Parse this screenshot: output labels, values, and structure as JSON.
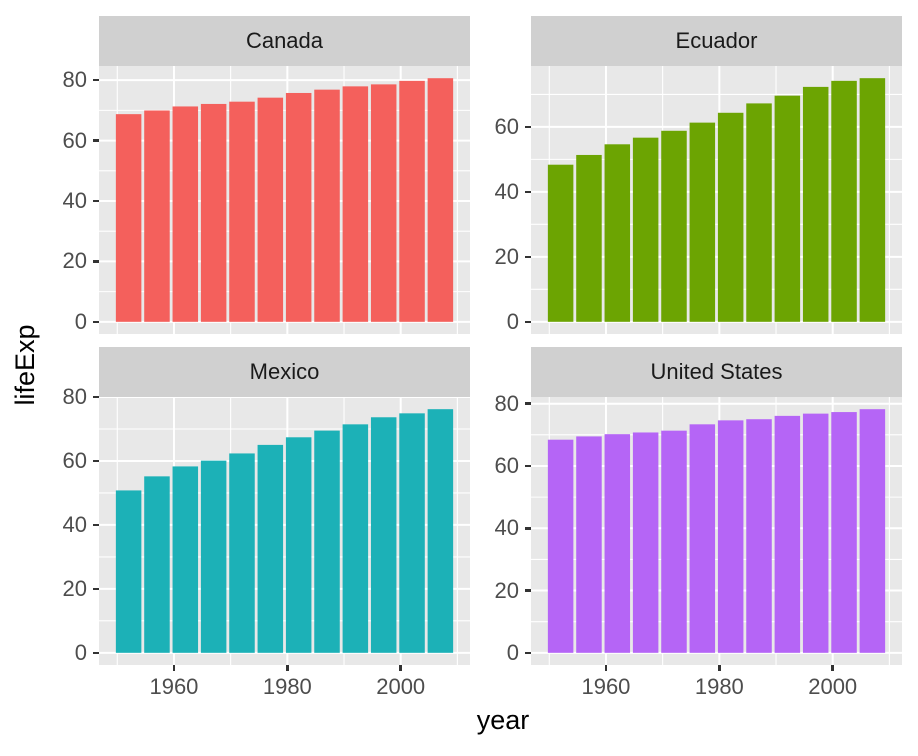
{
  "chart_data": {
    "type": "bar",
    "title": "",
    "xlabel": "year",
    "ylabel": "lifeExp",
    "x": [
      1952,
      1957,
      1962,
      1967,
      1972,
      1977,
      1982,
      1987,
      1992,
      1997,
      2002,
      2007
    ],
    "xticks": [
      1960,
      1980,
      2000
    ],
    "xminor": [
      1950,
      1970,
      1990,
      2010
    ],
    "xlim": [
      1946.775,
      2012.225
    ],
    "bar_width_years": 4.5,
    "grid": true,
    "legend": "none",
    "facets": [
      {
        "name": "Canada",
        "color": "#f4605c",
        "ylim": [
          -4.03,
          84.69
        ],
        "yticks": [
          0,
          20,
          40,
          60,
          80
        ],
        "yminor": [
          10,
          30,
          50,
          70
        ],
        "values": [
          68.75,
          69.96,
          71.3,
          72.13,
          72.88,
          74.21,
          75.76,
          76.86,
          77.95,
          78.61,
          79.77,
          80.65
        ]
      },
      {
        "name": "Ecuador",
        "color": "#6ca402",
        "ylim": [
          -3.75,
          78.74
        ],
        "yticks": [
          0,
          20,
          40,
          60
        ],
        "yminor": [
          10,
          30,
          50,
          70
        ],
        "values": [
          48.36,
          51.36,
          54.64,
          56.68,
          58.8,
          61.31,
          64.34,
          67.23,
          69.61,
          72.31,
          74.17,
          74.99
        ]
      },
      {
        "name": "Mexico",
        "color": "#1cb1b7",
        "ylim": [
          -3.81,
          80.01
        ],
        "yticks": [
          0,
          20,
          40,
          60,
          80
        ],
        "yminor": [
          10,
          30,
          50,
          70
        ],
        "values": [
          50.79,
          55.19,
          58.3,
          60.11,
          62.36,
          65.03,
          67.41,
          69.5,
          71.46,
          73.67,
          74.9,
          76.2
        ]
      },
      {
        "name": "United States",
        "color": "#b565f6",
        "ylim": [
          -3.91,
          82.15
        ],
        "yticks": [
          0,
          20,
          40,
          60,
          80
        ],
        "yminor": [
          10,
          30,
          50,
          70
        ],
        "values": [
          68.44,
          69.49,
          70.21,
          70.76,
          71.34,
          73.38,
          74.65,
          75.02,
          76.09,
          76.81,
          77.31,
          78.24
        ]
      }
    ],
    "style": {
      "panel_bg": "#e8e8e8",
      "strip_bg": "#d0d0d0",
      "grid_color": "#ffffff",
      "tick_color": "#333333",
      "tick_label_color": "#4d4d4d",
      "axis_title_color": "#000000"
    }
  }
}
